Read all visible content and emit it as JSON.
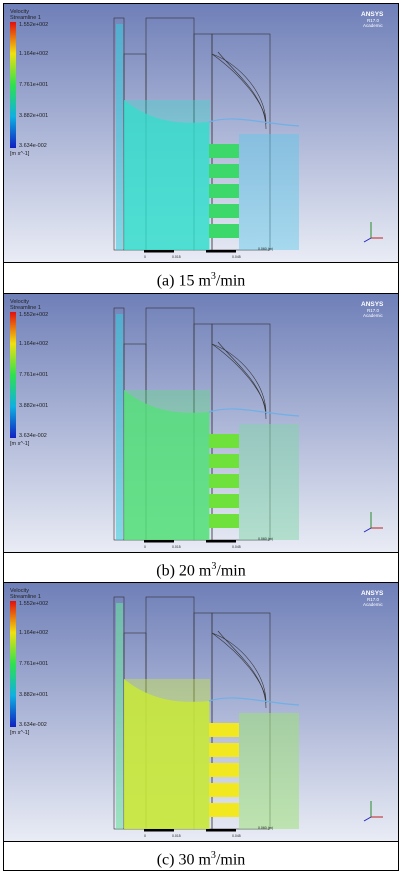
{
  "panels": [
    {
      "caption_prefix": "(a)  15  m",
      "caption_sup": "3",
      "caption_suffix": "/min",
      "legend_title_1": "Velocity",
      "legend_title_2": "Streamline 1",
      "legend_values": [
        "1.552e+002",
        "1.164e+002",
        "7.761e+001",
        "3.882e+001",
        "3.634e-002"
      ],
      "legend_unit": "[m s^-1]",
      "brand": "ANSYS",
      "brand_version": "R17.0",
      "brand_edition": "Academic",
      "scale_labels": [
        "0",
        "0.015",
        "0.060 (m)",
        "0.045"
      ],
      "flow_color": "#33ddcc"
    },
    {
      "caption_prefix": "(b)  20  m",
      "caption_sup": "3",
      "caption_suffix": "/min",
      "legend_title_1": "Velocity",
      "legend_title_2": "Streamline 1",
      "legend_values": [
        "1.552e+002",
        "1.164e+002",
        "7.761e+001",
        "3.882e+001",
        "3.634e-002"
      ],
      "legend_unit": "[m s^-1]",
      "brand": "ANSYS",
      "brand_version": "R17.0",
      "brand_edition": "Academic",
      "scale_labels": [
        "0",
        "0.015",
        "0.060 (m)",
        "0.045"
      ],
      "flow_color": "#55e07a"
    },
    {
      "caption_prefix": "(c)  30  m",
      "caption_sup": "3",
      "caption_suffix": "/min",
      "legend_title_1": "Velocity",
      "legend_title_2": "Streamline 1",
      "legend_values": [
        "1.552e+002",
        "1.164e+002",
        "7.761e+001",
        "3.882e+001",
        "3.634e-002"
      ],
      "legend_unit": "[m s^-1]",
      "brand": "ANSYS",
      "brand_version": "R17.0",
      "brand_edition": "Academic",
      "scale_labels": [
        "0",
        "0.015",
        "0.060 (m)",
        "0.045"
      ],
      "flow_color": "#c8e83a"
    }
  ]
}
